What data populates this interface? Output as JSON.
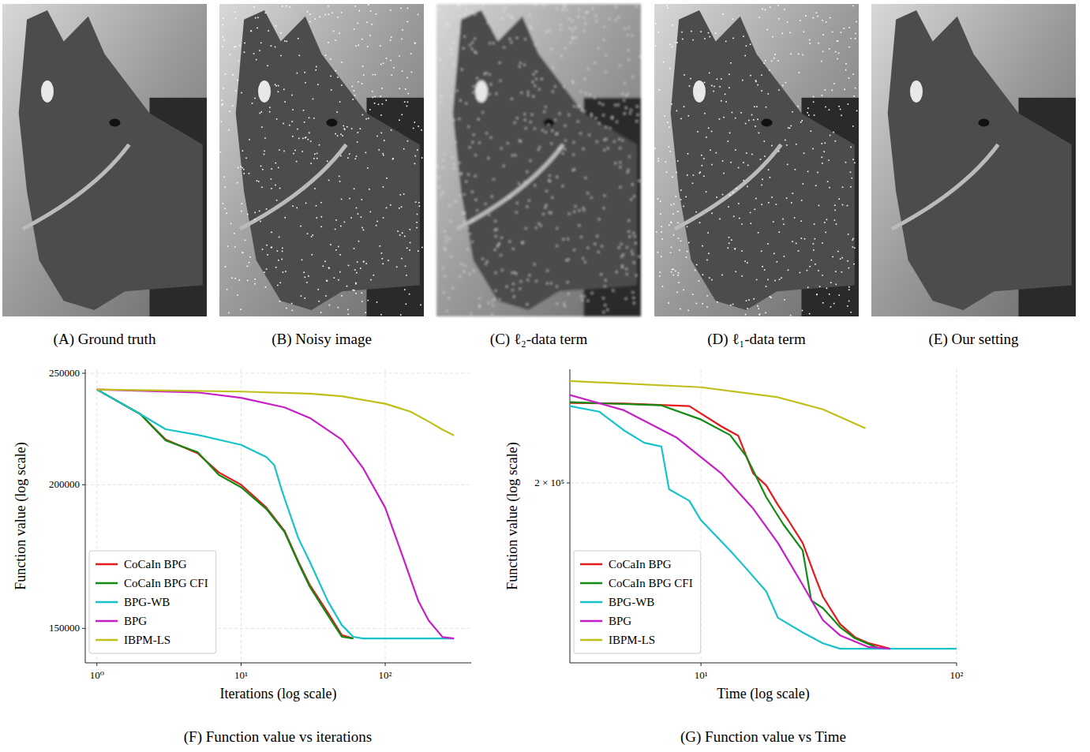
{
  "images": [
    {
      "caption": "(A) Ground truth"
    },
    {
      "caption": "(B) Noisy image"
    },
    {
      "caption": "(C) ℓ₂-data term"
    },
    {
      "caption": "(D) ℓ₁-data term"
    },
    {
      "caption": "(E) Our setting"
    }
  ],
  "chart_data": [
    {
      "type": "line",
      "title": "(F) Function value vs iterations",
      "x_label": "Iterations (log scale)",
      "y_label": "Function value (log scale)",
      "log": true,
      "grid": true,
      "legend": "lower left",
      "xlim": [
        0.83,
        395
      ],
      "ylim": [
        140000,
        252000
      ],
      "xticks": [
        {
          "value": 1,
          "label": "10⁰"
        },
        {
          "value": 10,
          "label": "10¹"
        },
        {
          "value": 100,
          "label": "10²"
        }
      ],
      "yticks": [
        150000,
        200000,
        250000
      ],
      "series": [
        {
          "name": "CoCaIn BPG",
          "color": "#e41a1c",
          "x": [
            1,
            2,
            3,
            5,
            7,
            10,
            15,
            20,
            25,
            30,
            40,
            50,
            60
          ],
          "values": [
            242000,
            230400,
            218900,
            213000,
            205000,
            200000,
            191000,
            182400,
            171400,
            163600,
            154800,
            148000,
            147000
          ]
        },
        {
          "name": "CoCaIn BPG CFI",
          "color": "#138a13",
          "x": [
            1,
            2,
            3,
            5,
            7,
            10,
            15,
            20,
            25,
            30,
            40,
            50,
            60
          ],
          "values": [
            242000,
            230400,
            218500,
            213500,
            204000,
            199000,
            190500,
            182000,
            171000,
            163000,
            154000,
            147500,
            147000
          ]
        },
        {
          "name": "BPG-WB",
          "color": "#17c3c9",
          "x": [
            1,
            2,
            3,
            5,
            10,
            15,
            17,
            19,
            20,
            25,
            30,
            40,
            50,
            60,
            70,
            300
          ],
          "values": [
            242000,
            230400,
            223500,
            221000,
            216600,
            211400,
            208000,
            198500,
            194700,
            179600,
            171400,
            158400,
            151000,
            147500,
            147000,
            147000
          ]
        },
        {
          "name": "BPG",
          "color": "#c71fc7",
          "x": [
            1,
            5,
            10,
            20,
            30,
            50,
            70,
            100,
            130,
            170,
            200,
            250,
            300
          ],
          "values": [
            242000,
            240600,
            238000,
            233500,
            228600,
            218900,
            206900,
            191000,
            174300,
            158400,
            152400,
            147400,
            147000
          ]
        },
        {
          "name": "IBPM-LS",
          "color": "#bfbf1a",
          "x": [
            1,
            10,
            30,
            50,
            100,
            150,
            200,
            250,
            300
          ],
          "values": [
            242000,
            241000,
            240000,
            238800,
            235200,
            231500,
            227000,
            223300,
            220800
          ]
        }
      ]
    },
    {
      "type": "line",
      "title": "(G) Function value vs Time",
      "x_label": "Time (log scale)",
      "y_label": "Function value (log scale)",
      "log": true,
      "grid": true,
      "legend": "lower left",
      "xlim": [
        3.07,
        100
      ],
      "ylim": [
        143200,
        247000
      ],
      "xticks": [
        {
          "value": 10,
          "label": "10¹"
        },
        {
          "value": 100,
          "label": "10²"
        }
      ],
      "yticks": [
        {
          "value": 200000,
          "label": "2 × 10⁵"
        }
      ],
      "series": [
        {
          "name": "CoCaIn BPG",
          "color": "#e41a1c",
          "x": [
            3.07,
            5,
            9,
            12,
            14,
            16,
            18,
            20,
            22,
            25,
            28,
            30,
            35,
            40,
            45,
            55
          ],
          "values": [
            232000,
            231800,
            230700,
            222200,
            218300,
            203600,
            199100,
            192000,
            186500,
            178900,
            167900,
            161900,
            153900,
            150200,
            148600,
            147000
          ]
        },
        {
          "name": "CoCaIn BPG CFI",
          "color": "#138a13",
          "x": [
            3.07,
            7,
            10,
            13,
            15,
            18,
            21,
            25,
            27,
            30,
            35,
            40,
            50
          ],
          "values": [
            232400,
            231000,
            225000,
            218600,
            210300,
            194800,
            185200,
            176400,
            160800,
            158500,
            153000,
            149900,
            147000
          ]
        },
        {
          "name": "BPG-WB",
          "color": "#17c3c9",
          "x": [
            3.07,
            4,
            5,
            6,
            7,
            7.5,
            9,
            10,
            13,
            15,
            18,
            20,
            25,
            30,
            35,
            100
          ],
          "values": [
            230700,
            228300,
            220500,
            215500,
            214000,
            197700,
            193500,
            186600,
            176400,
            170700,
            163500,
            155700,
            151500,
            148500,
            147000,
            147000
          ]
        },
        {
          "name": "BPG",
          "color": "#c71fc7",
          "x": [
            3.07,
            5,
            8,
            12,
            16,
            20,
            25,
            30,
            35,
            45,
            55
          ],
          "values": [
            235500,
            228900,
            217700,
            203600,
            190700,
            178900,
            165500,
            155000,
            150700,
            147500,
            147000
          ]
        },
        {
          "name": "IBPM-LS",
          "color": "#bfbf1a",
          "x": [
            3.07,
            10,
            20,
            30,
            44
          ],
          "values": [
            241700,
            238900,
            234500,
            229300,
            221400
          ]
        }
      ]
    }
  ]
}
